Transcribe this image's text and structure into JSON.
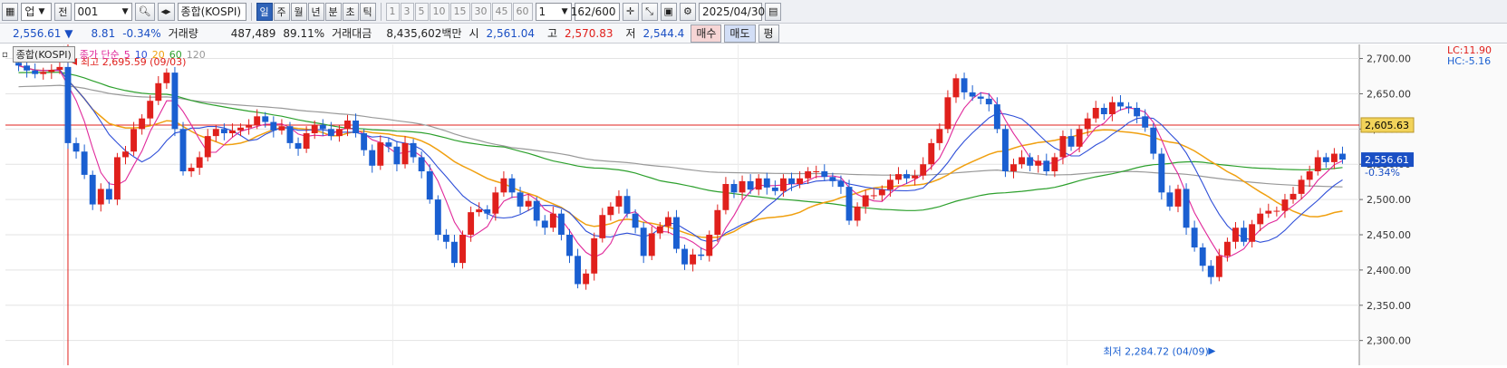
{
  "toolbar": {
    "market": "업",
    "market_type": "전",
    "code": "001",
    "name": "종합(KOSPI)",
    "periods": [
      "일",
      "주",
      "월",
      "년",
      "분",
      "초",
      "틱"
    ],
    "active_period": "일",
    "numbers": [
      "1",
      "3",
      "5",
      "10",
      "15",
      "30",
      "45",
      "60"
    ],
    "interval": "1",
    "count": "162/600",
    "date": "2025/04/30"
  },
  "quote": {
    "price": "2,556.61 ▼",
    "change": "8.81",
    "change_pct": "-0.34%",
    "volume_label": "거래량",
    "volume": "487,489",
    "volume_pct": "89.11%",
    "amount_label": "거래대금",
    "amount": "8,435,602백만",
    "open_label": "시",
    "open": "2,561.04",
    "high_label": "고",
    "high": "2,570.83",
    "low_label": "저",
    "low": "2,544.4",
    "buy": "매수",
    "sell": "매도",
    "eval": "평"
  },
  "legend": {
    "name": "종합(KOSPI)",
    "price_label": "종가 단순",
    "periods": [
      "5",
      "10",
      "20",
      "60",
      "120"
    ]
  },
  "colors": {
    "up": "#e0201c",
    "down": "#1a5fd1",
    "ma5": "#e0289a",
    "ma10": "#2f4fd8",
    "ma20": "#f0a010",
    "ma60": "#2da02d",
    "ma120": "#999999"
  },
  "chart_data": {
    "type": "candlestick",
    "y_ticks": [
      "2,700.00",
      "2,650.00",
      "2,600.00",
      "2,550.00",
      "2,500.00",
      "2,450.00",
      "2,400.00",
      "2,350.00",
      "2,300.00"
    ],
    "ylim": [
      2270,
      2720
    ],
    "current_price_label": "2,556.61",
    "current_pct_label": "-0.34%",
    "ref_line_label": "2,605.63",
    "ref_line_value": 2605.63,
    "lc_label": "LC:11.90",
    "hc_label": "HC:-5.16",
    "high_annotation": "최고 2,695.59 (09/03)",
    "low_annotation": "최저 2,284.72 (04/09)",
    "closes": [
      2690,
      2683,
      2678,
      2681,
      2684,
      2688,
      2580,
      2568,
      2535,
      2493,
      2515,
      2500,
      2560,
      2568,
      2600,
      2615,
      2640,
      2665,
      2680,
      2600,
      2540,
      2545,
      2560,
      2590,
      2600,
      2594,
      2598,
      2602,
      2606,
      2618,
      2610,
      2598,
      2604,
      2580,
      2572,
      2594,
      2606,
      2600,
      2590,
      2600,
      2612,
      2594,
      2570,
      2548,
      2581,
      2575,
      2550,
      2580,
      2560,
      2540,
      2500,
      2450,
      2440,
      2410,
      2450,
      2482,
      2486,
      2480,
      2510,
      2530,
      2510,
      2490,
      2498,
      2470,
      2460,
      2480,
      2450,
      2420,
      2380,
      2395,
      2445,
      2478,
      2490,
      2505,
      2480,
      2460,
      2420,
      2452,
      2462,
      2475,
      2430,
      2408,
      2422,
      2420,
      2450,
      2485,
      2522,
      2510,
      2526,
      2514,
      2530,
      2517,
      2512,
      2530,
      2522,
      2530,
      2540,
      2540,
      2532,
      2526,
      2518,
      2470,
      2490,
      2506,
      2506,
      2514,
      2528,
      2536,
      2530,
      2534,
      2550,
      2580,
      2600,
      2645,
      2672,
      2652,
      2646,
      2643,
      2635,
      2600,
      2540,
      2550,
      2560,
      2548,
      2555,
      2540,
      2560,
      2590,
      2575,
      2600,
      2615,
      2630,
      2621,
      2638,
      2632,
      2630,
      2618,
      2602,
      2565,
      2510,
      2490,
      2515,
      2460,
      2432,
      2406,
      2390,
      2420,
      2440,
      2460,
      2440,
      2465,
      2480,
      2484,
      2484,
      2500,
      2508,
      2528,
      2540,
      2560,
      2553,
      2565,
      2556.61
    ],
    "ma_series": [
      "ma5",
      "ma10",
      "ma20",
      "ma60",
      "ma120"
    ]
  }
}
